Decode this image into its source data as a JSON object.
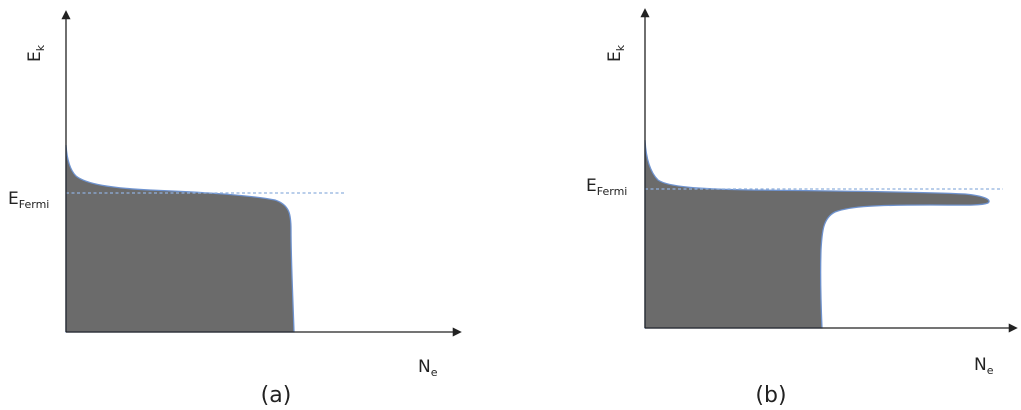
{
  "colors": {
    "fill": "#6b6b6b",
    "outline": "#6f93cf",
    "fermi_line": "#8fb0de",
    "axis": "#222222"
  },
  "panels": [
    {
      "label": "(a)",
      "y_axis_label": {
        "main": "E",
        "sub": "k"
      },
      "x_axis_label": {
        "main": "N",
        "sub": "e"
      },
      "fermi_label": {
        "main": "E",
        "sub": "Fermi"
      }
    },
    {
      "label": "(b)",
      "y_axis_label": {
        "main": "E",
        "sub": "k"
      },
      "x_axis_label": {
        "main": "N",
        "sub": "e"
      },
      "fermi_label": {
        "main": "E",
        "sub": "Fermi"
      }
    }
  ]
}
